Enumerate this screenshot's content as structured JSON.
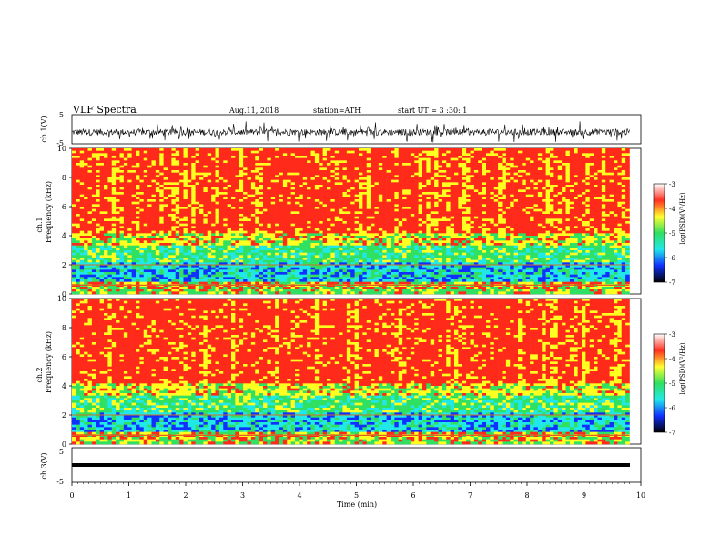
{
  "header": {
    "title": "VLF Spectra",
    "date": "Aug.11, 2018",
    "station": "station=ATH",
    "start": "start UT = 3 :30: 1"
  },
  "chart_data": [
    {
      "type": "line",
      "ylabel": "ch.1(V)",
      "ylim": [
        -5,
        5
      ],
      "yticks": [
        "5",
        "-5"
      ],
      "xlim": [
        0,
        10
      ],
      "data_extent_min": [
        0,
        9.8
      ],
      "description_values": {
        "baseline_v": -1,
        "noise_amplitude_v": 2.5
      }
    },
    {
      "type": "heatmap",
      "ylabel_top": "ch.1",
      "ylabel": "Frequency (kHz)",
      "ylim": [
        0,
        10
      ],
      "yticks": [
        "0",
        "2",
        "4",
        "6",
        "8",
        "10"
      ],
      "colorbar_label": "log(PSD)(V²/Hz)",
      "colorbar_range": [
        -7,
        -3
      ],
      "colorbar_ticks": [
        "-3",
        "-4",
        "-5",
        "-6",
        "-7"
      ]
    },
    {
      "type": "heatmap",
      "ylabel_top": "ch.2",
      "ylabel": "Frequency (kHz)",
      "ylim": [
        0,
        10
      ],
      "yticks": [
        "0",
        "2",
        "4",
        "6",
        "8",
        "10"
      ],
      "colorbar_label": "log(PSD)(V²/Hz)",
      "colorbar_range": [
        -7,
        -3
      ],
      "colorbar_ticks": [
        "-3",
        "-4",
        "-5",
        "-6",
        "-7"
      ]
    },
    {
      "type": "line",
      "ylabel": "ch.3(V)",
      "ylim": [
        -5,
        5
      ],
      "yticks": [
        "5",
        "-5"
      ],
      "baseline_v": -1
    }
  ],
  "xaxis": {
    "label": "Time (min)",
    "ticks": [
      "0",
      "1",
      "2",
      "3",
      "4",
      "5",
      "6",
      "7",
      "8",
      "9",
      "10"
    ],
    "range": [
      0,
      10
    ]
  },
  "colors": {
    "red": "#ff2a1a",
    "yellow": "#ffff20",
    "green": "#30e060",
    "cyan": "#20e8e8",
    "blue": "#1030ff",
    "dark": "#000000"
  }
}
